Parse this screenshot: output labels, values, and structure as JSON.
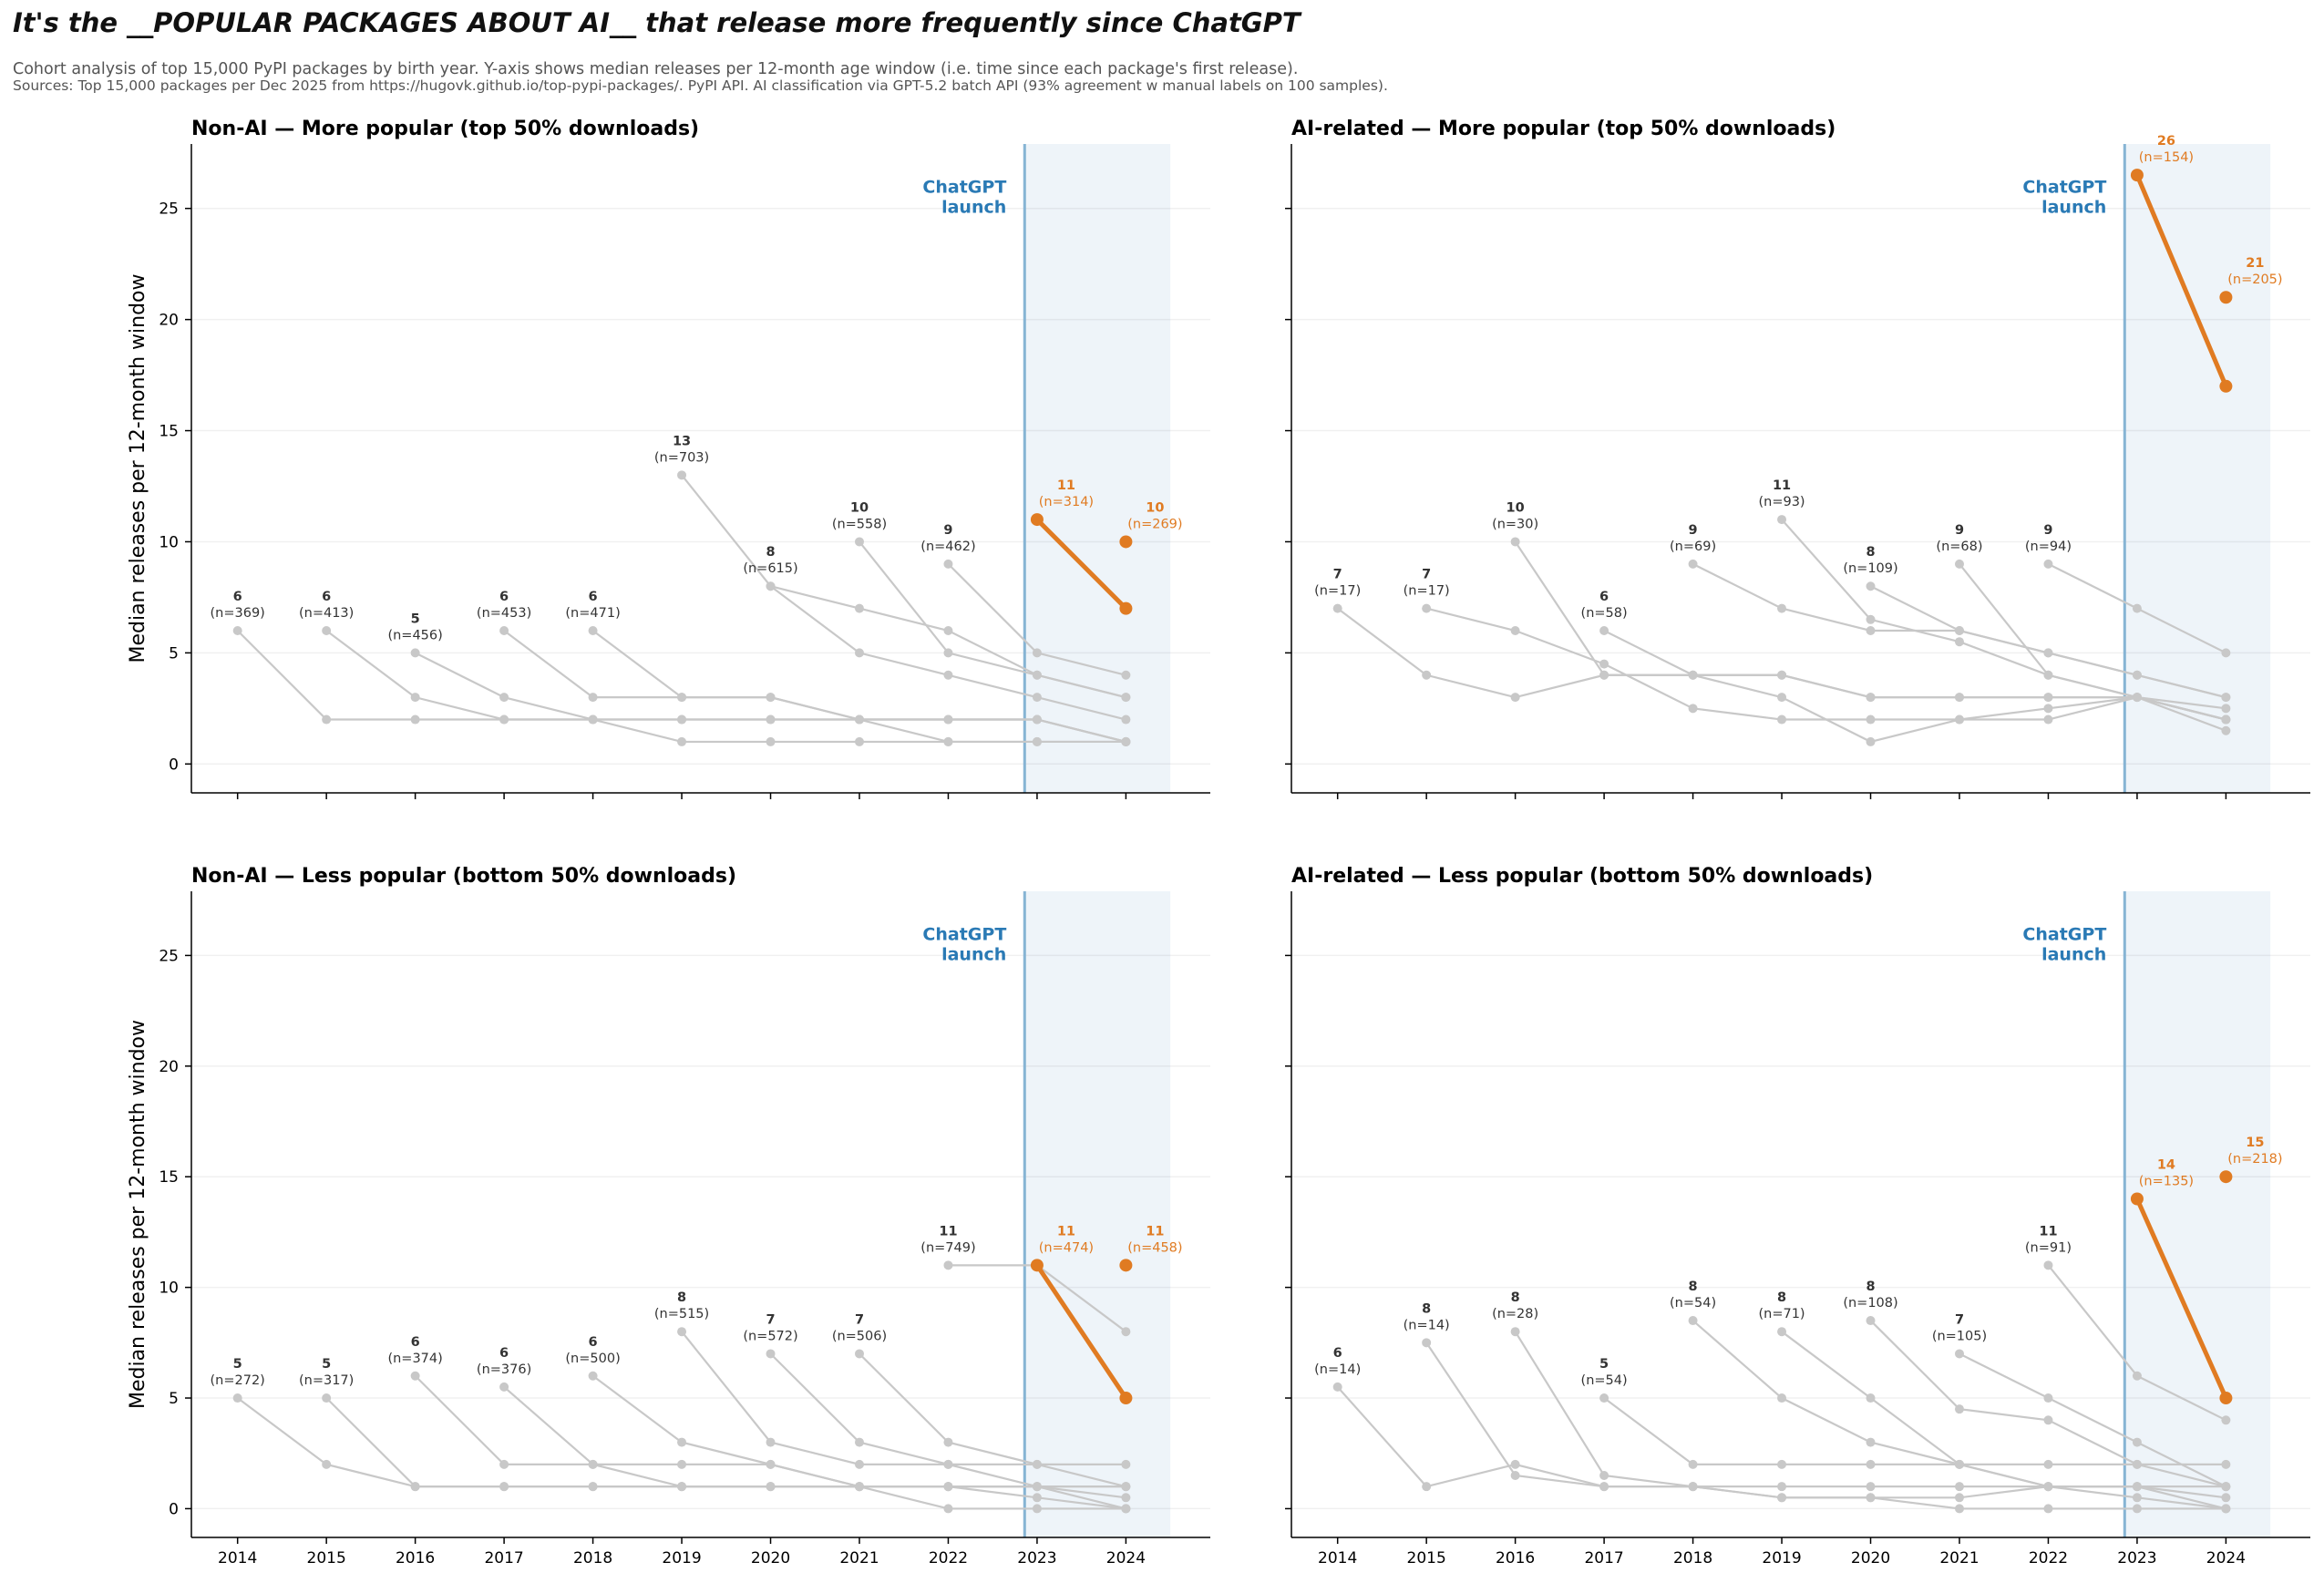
{
  "title": "It's the __POPULAR PACKAGES ABOUT AI__ that release more frequently since ChatGPT",
  "subtitle": "Cohort analysis of top 15,000 PyPI packages by birth year. Y-axis shows median releases per 12-month age window (i.e. time since each package's first release).",
  "sources": "Sources: Top 15,000 packages per Dec 2025 from https://hugovk.github.io/top-pypi-packages/. PyPI API. AI classification via GPT-5.2 batch API (93% agreement w manual labels on 100 samples).",
  "colors": {
    "cohort": "#c8c8c8",
    "highlight": "#e07b22",
    "launch_line": "#86b4d4",
    "launch_text": "#2a7ab5",
    "launch_shade": "#eef4f9",
    "label_text": "#333333"
  },
  "chart_data": {
    "type": "line",
    "ylabel": "Median releases per 12-month window",
    "x_ticks": [
      2014,
      2015,
      2016,
      2017,
      2018,
      2019,
      2020,
      2021,
      2022,
      2023,
      2024
    ],
    "y_ticks": [
      0,
      5,
      10,
      15,
      20,
      25
    ],
    "xlim": [
      2013.48,
      2024.95
    ],
    "ylim": [
      -1.3,
      27.9
    ],
    "grid": "horizontal",
    "shared_y": true,
    "launch_marker": {
      "label_line1": "ChatGPT",
      "label_line2": "launch",
      "x": 2022.86,
      "shade_to": 2024.5
    },
    "panels": [
      {
        "title": "Non-AI — More popular (top 50% downloads)",
        "cohorts": [
          {
            "year": 2014,
            "label": "6",
            "n": "(n=369)",
            "values": [
              6,
              2,
              2,
              2,
              2,
              2,
              2,
              2,
              2,
              2,
              1
            ]
          },
          {
            "year": 2015,
            "label": "6",
            "n": "(n=413)",
            "values": [
              6,
              3,
              2,
              2,
              2,
              2,
              2,
              2,
              2,
              1
            ]
          },
          {
            "year": 2016,
            "label": "5",
            "n": "(n=456)",
            "values": [
              5,
              3,
              2,
              1,
              1,
              1,
              1,
              1,
              1
            ]
          },
          {
            "year": 2017,
            "label": "6",
            "n": "(n=453)",
            "values": [
              6,
              3,
              3,
              3,
              2,
              1,
              1,
              1
            ]
          },
          {
            "year": 2018,
            "label": "6",
            "n": "(n=471)",
            "values": [
              6,
              3,
              3,
              2,
              2,
              2,
              1
            ]
          },
          {
            "year": 2019,
            "label": "13",
            "n": "(n=703)",
            "values": [
              13,
              8,
              5,
              4,
              3,
              2
            ]
          },
          {
            "year": 2020,
            "label": "8",
            "n": "(n=615)",
            "values": [
              8,
              7,
              6,
              4,
              3
            ]
          },
          {
            "year": 2021,
            "label": "10",
            "n": "(n=558)",
            "values": [
              10,
              5,
              4,
              3
            ]
          },
          {
            "year": 2022,
            "label": "9",
            "n": "(n=462)",
            "values": [
              9,
              5,
              4
            ]
          },
          {
            "year": 2023,
            "label": "11",
            "n": "(n=314)",
            "values": [
              11,
              7
            ],
            "highlight": true
          },
          {
            "year": 2024,
            "label": "10",
            "n": "(n=269)",
            "values": [
              10
            ],
            "highlight": true
          }
        ]
      },
      {
        "title": "AI-related — More popular (top 50% downloads)",
        "cohorts": [
          {
            "year": 2014,
            "label": "7",
            "n": "(n=17)",
            "values": [
              7,
              4,
              3,
              4,
              4,
              4,
              3,
              3,
              3,
              3,
              2
            ]
          },
          {
            "year": 2015,
            "label": "7",
            "n": "(n=17)",
            "values": [
              7,
              6,
              4.5,
              2.5,
              2,
              2,
              2,
              2,
              3,
              2.5
            ]
          },
          {
            "year": 2016,
            "label": "10",
            "n": "(n=30)",
            "values": [
              10,
              4,
              4,
              3,
              1,
              2,
              2.5,
              3,
              2
            ]
          },
          {
            "year": 2017,
            "label": "6",
            "n": "(n=58)",
            "values": [
              6,
              4,
              4,
              3,
              3,
              3,
              3,
              2
            ]
          },
          {
            "year": 2018,
            "label": "9",
            "n": "(n=69)",
            "values": [
              9,
              7,
              6,
              6,
              5,
              4,
              3
            ]
          },
          {
            "year": 2019,
            "label": "11",
            "n": "(n=93)",
            "values": [
              11,
              6.5,
              5.5,
              4,
              3,
              1.5
            ]
          },
          {
            "year": 2020,
            "label": "8",
            "n": "(n=109)",
            "values": [
              8,
              6,
              5,
              4,
              3
            ]
          },
          {
            "year": 2021,
            "label": "9",
            "n": "(n=68)",
            "values": [
              9,
              4,
              3,
              2
            ]
          },
          {
            "year": 2022,
            "label": "9",
            "n": "(n=94)",
            "values": [
              9,
              7,
              5
            ]
          },
          {
            "year": 2023,
            "label": "26",
            "n": "(n=154)",
            "values": [
              26.5,
              17
            ],
            "highlight": true
          },
          {
            "year": 2024,
            "label": "21",
            "n": "(n=205)",
            "values": [
              21
            ],
            "highlight": true
          }
        ]
      },
      {
        "title": "Non-AI — Less popular (bottom 50% downloads)",
        "cohorts": [
          {
            "year": 2014,
            "label": "5",
            "n": "(n=272)",
            "values": [
              5,
              2,
              1,
              1,
              1,
              1,
              1,
              1,
              1,
              1,
              1
            ]
          },
          {
            "year": 2015,
            "label": "5",
            "n": "(n=317)",
            "values": [
              5,
              1,
              1,
              1,
              1,
              1,
              1,
              1,
              1,
              1
            ]
          },
          {
            "year": 2016,
            "label": "6",
            "n": "(n=374)",
            "values": [
              6,
              2,
              2,
              2,
              2,
              1,
              1,
              0.5,
              0
            ]
          },
          {
            "year": 2017,
            "label": "6",
            "n": "(n=376)",
            "values": [
              5.5,
              2,
              1,
              1,
              1,
              1,
              1,
              0
            ]
          },
          {
            "year": 2018,
            "label": "6",
            "n": "(n=500)",
            "values": [
              6,
              3,
              2,
              1,
              0,
              0,
              0
            ]
          },
          {
            "year": 2019,
            "label": "8",
            "n": "(n=515)",
            "values": [
              8,
              3,
              2,
              2,
              2,
              2
            ]
          },
          {
            "year": 2020,
            "label": "7",
            "n": "(n=572)",
            "values": [
              7,
              3,
              2,
              1,
              0.5
            ]
          },
          {
            "year": 2021,
            "label": "7",
            "n": "(n=506)",
            "values": [
              7,
              3,
              2,
              1
            ]
          },
          {
            "year": 2022,
            "label": "11",
            "n": "(n=749)",
            "values": [
              11,
              11,
              8
            ]
          },
          {
            "year": 2023,
            "label": "11",
            "n": "(n=474)",
            "values": [
              11,
              5
            ],
            "highlight": true
          },
          {
            "year": 2024,
            "label": "11",
            "n": "(n=458)",
            "values": [
              11
            ],
            "highlight": true
          }
        ]
      },
      {
        "title": "AI-related — Less popular (bottom 50% downloads)",
        "cohorts": [
          {
            "year": 2014,
            "label": "6",
            "n": "(n=14)",
            "values": [
              5.5,
              1,
              2,
              1,
              1,
              0.5,
              0.5,
              0,
              0,
              0,
              0
            ]
          },
          {
            "year": 2015,
            "label": "8",
            "n": "(n=14)",
            "values": [
              7.5,
              1.5,
              1,
              1,
              1,
              1,
              1,
              1,
              1,
              0
            ]
          },
          {
            "year": 2016,
            "label": "8",
            "n": "(n=28)",
            "values": [
              8,
              1.5,
              1,
              0.5,
              0.5,
              0.5,
              1,
              1,
              1
            ]
          },
          {
            "year": 2017,
            "label": "5",
            "n": "(n=54)",
            "values": [
              5,
              2,
              2,
              2,
              2,
              2,
              2,
              2
            ]
          },
          {
            "year": 2018,
            "label": "8",
            "n": "(n=54)",
            "values": [
              8.5,
              5,
              3,
              2,
              1,
              1,
              0.5
            ]
          },
          {
            "year": 2019,
            "label": "8",
            "n": "(n=71)",
            "values": [
              8,
              5,
              2,
              1,
              0.5,
              0
            ]
          },
          {
            "year": 2020,
            "label": "8",
            "n": "(n=108)",
            "values": [
              8.5,
              4.5,
              4,
              2,
              1
            ]
          },
          {
            "year": 2021,
            "label": "7",
            "n": "(n=105)",
            "values": [
              7,
              5,
              3,
              1
            ]
          },
          {
            "year": 2022,
            "label": "11",
            "n": "(n=91)",
            "values": [
              11,
              6,
              4
            ]
          },
          {
            "year": 2023,
            "label": "14",
            "n": "(n=135)",
            "values": [
              14,
              5
            ],
            "highlight": true
          },
          {
            "year": 2024,
            "label": "15",
            "n": "(n=218)",
            "values": [
              15
            ],
            "highlight": true
          }
        ]
      }
    ]
  }
}
